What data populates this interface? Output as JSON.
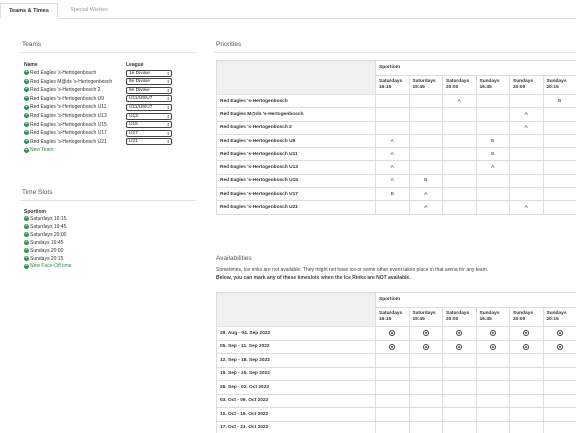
{
  "tabs": [
    {
      "label": "Teams & Times",
      "active": true
    },
    {
      "label": "Special Wishes",
      "active": false
    }
  ],
  "teams": {
    "title": "Teams",
    "col_name": "Name",
    "col_league": "League",
    "rows": [
      {
        "name": "Red Eagles 's-Hertogenbosch",
        "league": "1e Divisie"
      },
      {
        "name": "Red Eagles M@ds 's-Hertogenbosch",
        "league": "5e Divisie"
      },
      {
        "name": "Red Eagles 's-Hertogenbosch 2",
        "league": "6e Divisie"
      },
      {
        "name": "Red Eagles 's-Hertogenbosch U9",
        "league": "U11/U9/U7"
      },
      {
        "name": "Red Eagles 's-Hertogenbosch U11",
        "league": "U11/U9/U7"
      },
      {
        "name": "Red Eagles 's-Hertogenbosch U13",
        "league": "U13"
      },
      {
        "name": "Red Eagles 's-Hertogenbosch U15",
        "league": "U15"
      },
      {
        "name": "Red Eagles 's-Hertogenbosch U17",
        "league": "U17"
      },
      {
        "name": "Red Eagles 's-Hertogenbosch U21",
        "league": "U21"
      }
    ],
    "new_team_label": "New Team"
  },
  "time_slots": {
    "title": "Time Slots",
    "venue": "Sportiom",
    "slots": [
      "Saturdays 16:15",
      "Saturdays 19:45",
      "Saturdays 20:00",
      "Sundays 16:45",
      "Sundays 20:00",
      "Sundays 20:15"
    ],
    "new_slot_label": "New Face-Off time"
  },
  "priorities": {
    "title": "Priorities",
    "venue": "Sportiom",
    "columns": [
      {
        "day": "Saturdays",
        "time": "16:15"
      },
      {
        "day": "Saturdays",
        "time": "19:45"
      },
      {
        "day": "Saturdays",
        "time": "20:00"
      },
      {
        "day": "Sundays",
        "time": "16:45"
      },
      {
        "day": "Sundays",
        "time": "20:00"
      },
      {
        "day": "Sundays",
        "time": "20:15"
      }
    ],
    "rows": [
      {
        "team": "Red Eagles 's-Hertogenbosch",
        "cells": [
          "",
          "",
          "A",
          "",
          "",
          "B"
        ]
      },
      {
        "team": "Red Eagles M@ds 's-Hertogenbosch",
        "cells": [
          "",
          "",
          "",
          "",
          "A",
          ""
        ]
      },
      {
        "team": "Red Eagles 's-Hertogenbosch 2",
        "cells": [
          "",
          "",
          "",
          "",
          "A",
          ""
        ]
      },
      {
        "team": "Red Eagles 's-Hertogenbosch U9",
        "cells": [
          "A",
          "",
          "",
          "B",
          "",
          ""
        ]
      },
      {
        "team": "Red Eagles 's-Hertogenbosch U11",
        "cells": [
          "A",
          "",
          "",
          "B",
          "",
          ""
        ]
      },
      {
        "team": "Red Eagles 's-Hertogenbosch U13",
        "cells": [
          "A",
          "",
          "",
          "A",
          "",
          ""
        ]
      },
      {
        "team": "Red Eagles 's-Hertogenbosch U15",
        "cells": [
          "A",
          "B",
          "",
          "",
          "",
          ""
        ]
      },
      {
        "team": "Red Eagles 's-Hertogenbosch U17",
        "cells": [
          "B",
          "A",
          "",
          "",
          "",
          ""
        ]
      },
      {
        "team": "Red Eagles 's-Hertogenbosch U21",
        "cells": [
          "",
          "A",
          "",
          "",
          "A",
          ""
        ]
      }
    ]
  },
  "availabilities": {
    "title": "Availabilities",
    "note1": "Sometimes, ice rinks are not available. They might not have ice or some other event takes place in that arena for any team.",
    "note2": "Below, you can mark any of these timeslots when the Ice Rinks are NOT available.",
    "venue": "Sportiom",
    "rows": [
      {
        "week": "29. Aug - 04. Sep 2022",
        "marks": [
          true,
          true,
          true,
          true,
          true,
          true
        ]
      },
      {
        "week": "05. Sep - 11. Sep 2022",
        "marks": [
          true,
          true,
          true,
          true,
          true,
          true
        ]
      },
      {
        "week": "12. Sep - 18. Sep 2022",
        "marks": [
          false,
          false,
          false,
          false,
          false,
          false
        ]
      },
      {
        "week": "19. Sep - 25. Sep 2022",
        "marks": [
          false,
          false,
          false,
          false,
          false,
          false
        ]
      },
      {
        "week": "26. Sep - 02. Oct 2022",
        "marks": [
          false,
          false,
          false,
          false,
          false,
          false
        ]
      },
      {
        "week": "03. Oct - 09. Oct 2022",
        "marks": [
          false,
          false,
          false,
          false,
          false,
          false
        ]
      },
      {
        "week": "10. Oct - 16. Oct 2022",
        "marks": [
          false,
          false,
          false,
          false,
          false,
          false
        ]
      },
      {
        "week": "17. Oct - 23. Oct 2022",
        "marks": [
          false,
          false,
          false,
          false,
          false,
          false
        ]
      }
    ]
  }
}
